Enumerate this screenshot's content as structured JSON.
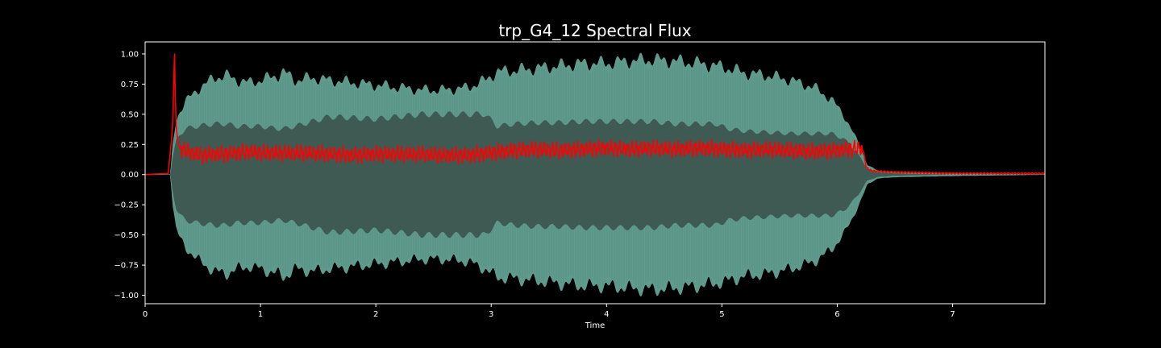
{
  "chart_data": {
    "type": "line",
    "title": "trp_G4_12 Spectral Flux",
    "xlabel": "Time",
    "ylabel": "",
    "xlim": [
      0,
      7.8
    ],
    "ylim": [
      -1.07,
      1.1
    ],
    "x_ticks": [
      0,
      1,
      2,
      3,
      4,
      5,
      6,
      7
    ],
    "x_tick_labels": [
      "0",
      "1",
      "2",
      "3",
      "4",
      "5",
      "6",
      "7"
    ],
    "y_ticks": [
      1.0,
      0.75,
      0.5,
      0.25,
      0.0,
      -0.25,
      -0.5,
      -0.75,
      -1.0
    ],
    "y_tick_labels": [
      "1.00",
      "0.75",
      "0.50",
      "0.25",
      "0.00",
      "−0.25",
      "−0.50",
      "−0.75",
      "−1.00"
    ],
    "grid": false,
    "background_color": "#000000",
    "waveform": {
      "fill_color": "#5f9b8c",
      "dense_color": "#3e5a52",
      "envelope_times": [
        0,
        0.22,
        0.24,
        0.27,
        0.3,
        0.35,
        0.45,
        0.6,
        0.7,
        0.8,
        0.9,
        1.0,
        1.15,
        1.2,
        1.3,
        1.45,
        1.6,
        1.8,
        2.0,
        2.2,
        2.4,
        2.6,
        2.8,
        2.95,
        3.05,
        3.2,
        3.4,
        3.6,
        3.8,
        4.0,
        4.2,
        4.4,
        4.6,
        4.8,
        4.95,
        5.05,
        5.2,
        5.4,
        5.6,
        5.8,
        5.95,
        6.05,
        6.12,
        6.2,
        6.26,
        6.35,
        6.5,
        7.0,
        7.8
      ],
      "envelope_outer": [
        0.0,
        0.0,
        0.25,
        0.45,
        0.52,
        0.6,
        0.7,
        0.8,
        0.82,
        0.78,
        0.76,
        0.78,
        0.82,
        0.85,
        0.78,
        0.8,
        0.78,
        0.76,
        0.74,
        0.72,
        0.7,
        0.7,
        0.72,
        0.78,
        0.85,
        0.86,
        0.88,
        0.9,
        0.92,
        0.92,
        0.94,
        0.95,
        0.94,
        0.92,
        0.9,
        0.88,
        0.84,
        0.82,
        0.78,
        0.72,
        0.62,
        0.5,
        0.38,
        0.22,
        0.08,
        0.03,
        0.02,
        0.01,
        0.0
      ],
      "envelope_inner": [
        0.0,
        0.0,
        0.15,
        0.28,
        0.33,
        0.38,
        0.4,
        0.42,
        0.42,
        0.4,
        0.4,
        0.4,
        0.38,
        0.38,
        0.4,
        0.44,
        0.48,
        0.47,
        0.46,
        0.48,
        0.5,
        0.5,
        0.5,
        0.5,
        0.4,
        0.42,
        0.43,
        0.43,
        0.44,
        0.44,
        0.44,
        0.44,
        0.42,
        0.42,
        0.42,
        0.38,
        0.36,
        0.35,
        0.34,
        0.34,
        0.34,
        0.3,
        0.24,
        0.14,
        0.05,
        0.02,
        0.01,
        0.0,
        0.0
      ]
    },
    "series": [
      {
        "name": "",
        "color": "#ff0000",
        "x": [
          0,
          0.2,
          0.23,
          0.24,
          0.25,
          0.255,
          0.26,
          0.27,
          0.28,
          0.3,
          0.35,
          0.4,
          0.5,
          0.6,
          0.7,
          0.8,
          0.9,
          1.0,
          1.2,
          1.4,
          1.6,
          1.8,
          2.0,
          2.2,
          2.4,
          2.6,
          2.8,
          3.0,
          3.2,
          3.4,
          3.6,
          3.8,
          4.0,
          4.2,
          4.4,
          4.6,
          4.8,
          5.0,
          5.2,
          5.4,
          5.6,
          5.8,
          6.0,
          6.1,
          6.2,
          6.23,
          6.25,
          6.3,
          6.5,
          7.0,
          7.8
        ],
        "y": [
          0.0,
          0.01,
          0.3,
          0.45,
          0.85,
          1.0,
          0.7,
          0.4,
          0.3,
          0.22,
          0.2,
          0.18,
          0.16,
          0.17,
          0.17,
          0.18,
          0.19,
          0.18,
          0.18,
          0.18,
          0.17,
          0.16,
          0.17,
          0.17,
          0.17,
          0.16,
          0.16,
          0.18,
          0.2,
          0.21,
          0.2,
          0.21,
          0.22,
          0.21,
          0.22,
          0.21,
          0.22,
          0.21,
          0.2,
          0.21,
          0.2,
          0.19,
          0.2,
          0.21,
          0.22,
          0.18,
          0.06,
          0.03,
          0.02,
          0.01,
          0.01
        ]
      }
    ]
  }
}
